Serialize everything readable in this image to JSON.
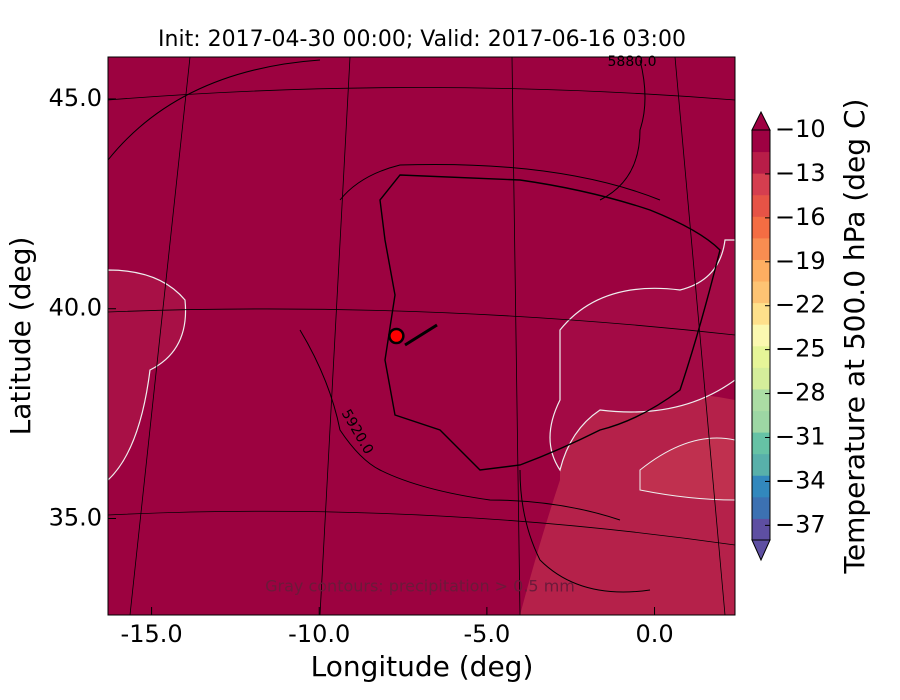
{
  "chart_data": {
    "type": "map",
    "title": "Init: 2017-04-30 00:00; Valid: 2017-06-16 03:00",
    "xlabel": "Longitude (deg)",
    "ylabel": "Latitude (deg)",
    "xlim": [
      -16.3,
      2.4
    ],
    "xticks": [
      {
        "value": -15,
        "label": "-15.0"
      },
      {
        "value": -10,
        "label": "-10.0"
      },
      {
        "value": -5,
        "label": "-5.0"
      },
      {
        "value": 0,
        "label": "0.0"
      }
    ],
    "ylim": [
      32.7,
      46.0
    ],
    "yticks": [
      {
        "value": 35,
        "label": "35.0"
      },
      {
        "value": 40,
        "label": "40.0"
      },
      {
        "value": 45,
        "label": "45.0"
      }
    ],
    "annotations": [
      "5920.0",
      "5880.0",
      "Gray contours: precipitation > 0.5 mm"
    ],
    "marker": {
      "lon": -7.7,
      "lat": 39.35,
      "color": "#ff0000"
    },
    "colorbar": {
      "label": "Temperature at 500.0 hPa (deg C)",
      "lim": [
        -38,
        -10
      ],
      "ticks": [
        -10,
        -13,
        -16,
        -19,
        -22,
        -25,
        -28,
        -31,
        -34,
        -37
      ],
      "colors": [
        "#5e4fa2",
        "#3c71b2",
        "#3288bd",
        "#58b0aa",
        "#66c2a5",
        "#9dd7a4",
        "#abdda4",
        "#d5ee9b",
        "#e6f598",
        "#fbf8b0",
        "#fee08b",
        "#fdc373",
        "#fdae61",
        "#f88d51",
        "#f46d43",
        "#e65346",
        "#d53e4f",
        "#b81d48",
        "#9e0142"
      ]
    }
  }
}
